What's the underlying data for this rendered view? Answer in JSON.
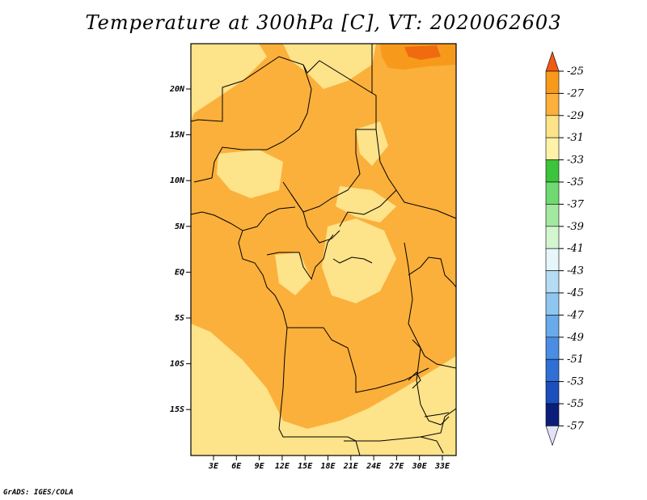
{
  "title": "Temperature at 300hPa [C], VT: 2020062603",
  "credit": "GrADS: IGES/COLA",
  "map": {
    "lat_labels": [
      "20N",
      "15N",
      "10N",
      "5N",
      "EQ",
      "5S",
      "10S",
      "15S"
    ],
    "lon_labels": [
      "3E",
      "6E",
      "9E",
      "12E",
      "15E",
      "18E",
      "21E",
      "24E",
      "27E",
      "30E",
      "33E"
    ],
    "colors": {
      "c_33_31": "#fde389",
      "c_31_29": "#fbb03b",
      "c_29_27": "#f79a1c",
      "c_27_25": "#f06a10",
      "border": "#000000"
    }
  },
  "colorbar": {
    "labels": [
      "-25",
      "-27",
      "-29",
      "-31",
      "-33",
      "-35",
      "-37",
      "-39",
      "-41",
      "-43",
      "-45",
      "-47",
      "-49",
      "-51",
      "-53",
      "-55",
      "-57"
    ],
    "top_color": "#f05a13",
    "bottom_color": "#e2e2f8",
    "colors": [
      "#f06a10",
      "#f79a1c",
      "#fbb03b",
      "#fde389",
      "#fdf2a8",
      "#3cc43c",
      "#6fda6f",
      "#a3e8a0",
      "#d3f5d0",
      "#e6f6fb",
      "#b4dcf3",
      "#8ec6ef",
      "#68aaea",
      "#4a8de2",
      "#2f6fd6",
      "#1a4fbd",
      "#0b1f7a"
    ]
  }
}
